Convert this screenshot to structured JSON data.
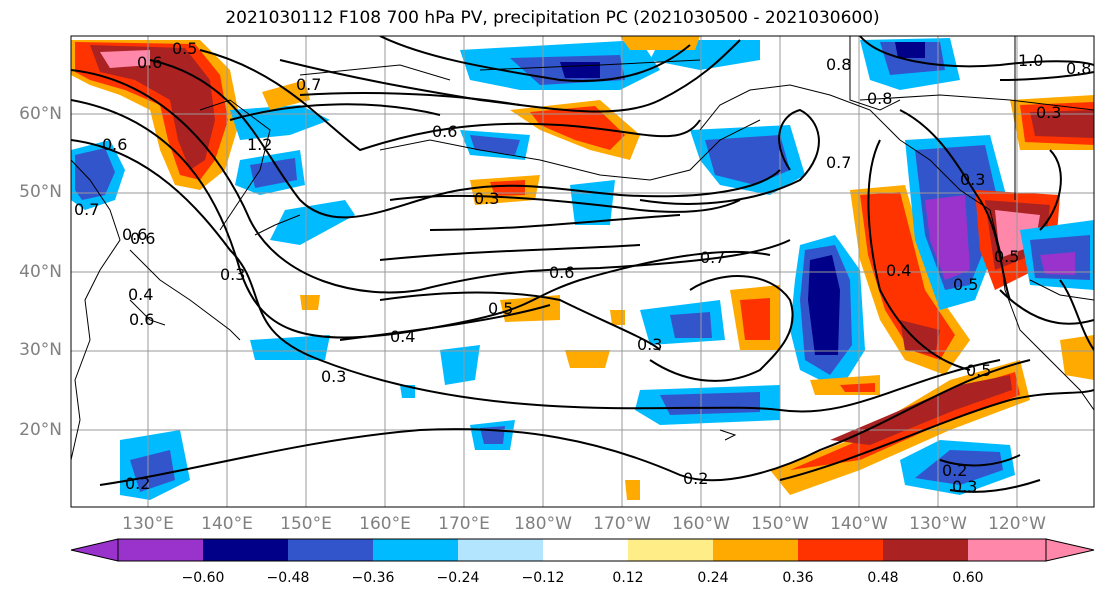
{
  "title": "2021030112 F108 700 hPa PV, precipitation PC (2021030500 - 2021030600)",
  "lat_labels": [
    "60°N",
    "50°N",
    "40°N",
    "30°N",
    "20°N"
  ],
  "lon_labels": [
    "130°E",
    "140°E",
    "150°E",
    "160°E",
    "170°E",
    "180°W",
    "170°W",
    "160°W",
    "150°W",
    "140°W",
    "130°W",
    "120°W"
  ],
  "colorbar": {
    "tick_labels": [
      "−0.60",
      "−0.48",
      "−0.36",
      "−0.24",
      "−0.12",
      "0.12",
      "0.24",
      "0.36",
      "0.48",
      "0.60"
    ],
    "colors": [
      "#9933cc",
      "#000088",
      "#3355cc",
      "#00bbff",
      "#b3e5ff",
      "#ffffff",
      "#ffee88",
      "#ffaa00",
      "#ff3300",
      "#aa2222",
      "#ff88aa"
    ]
  },
  "contour_labels": [
    "0.5",
    "0.6",
    "0.6",
    "0.6",
    "0.7",
    "0.3",
    "0.8",
    "0.8",
    "1.0",
    "0.8",
    "0.6",
    "0.3",
    "0.7",
    "0.3",
    "0.6",
    "0.7",
    "0.5",
    "0.4",
    "0.3",
    "0.3",
    "0.2",
    "0.2",
    "0.4",
    "0.5",
    "0.5",
    "0.2",
    "0.3",
    "1.2",
    "0.7",
    "0.3",
    "0.6",
    "0.4",
    "0.6",
    "0.5"
  ]
}
